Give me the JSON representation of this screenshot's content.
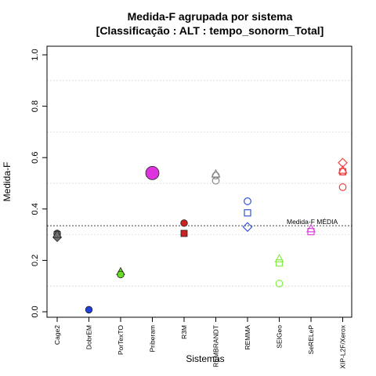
{
  "chart_data": {
    "type": "scatter",
    "title_line1": "Medida-F agrupada por sistema",
    "title_line2": "[Classificação : ALT : tempo_sonorm_Total]",
    "xlabel": "Sistemas",
    "ylabel": "Medida-F",
    "ylim": [
      0,
      1
    ],
    "yticks": [
      "0.0",
      "0.2",
      "0.4",
      "0.6",
      "0.8",
      "1.0"
    ],
    "grid": true,
    "reference_line": {
      "value": 0.335,
      "label": "Medida-F MÉDIA"
    },
    "categories": [
      "Cage2",
      "DobrEM",
      "PorTexTO",
      "Priberam",
      "R3M",
      "REMBRANDT",
      "REMMA",
      "SEIGeo",
      "SeRELeP",
      "XIP-L2F/Xerox"
    ],
    "points": [
      {
        "category": "Cage2",
        "y": 0.305,
        "shape": "circle",
        "color": "#707070",
        "filled": true
      },
      {
        "category": "Cage2",
        "y": 0.3,
        "shape": "square",
        "color": "#707070",
        "filled": true
      },
      {
        "category": "Cage2",
        "y": 0.29,
        "shape": "diamond",
        "color": "#707070",
        "filled": true
      },
      {
        "category": "Cage2",
        "y": 0.3,
        "shape": "triangle",
        "color": "#707070",
        "filled": true
      },
      {
        "category": "DobrEM",
        "y": 0.008,
        "shape": "circle",
        "color": "#1f3fd8",
        "filled": true
      },
      {
        "category": "PorTexTO",
        "y": 0.155,
        "shape": "triangle",
        "color": "#66dd22",
        "filled": true
      },
      {
        "category": "PorTexTO",
        "y": 0.145,
        "shape": "circle",
        "color": "#66dd22",
        "filled": true
      },
      {
        "category": "Priberam",
        "y": 0.54,
        "shape": "circle-large",
        "color": "#dd33dd",
        "filled": true
      },
      {
        "category": "R3M",
        "y": 0.345,
        "shape": "circle",
        "color": "#cc2222",
        "filled": true
      },
      {
        "category": "R3M",
        "y": 0.305,
        "shape": "square",
        "color": "#cc2222",
        "filled": true
      },
      {
        "category": "REMBRANDT",
        "y": 0.535,
        "shape": "triangle",
        "color": "#888888",
        "filled": false
      },
      {
        "category": "REMBRANDT",
        "y": 0.53,
        "shape": "circle",
        "color": "#888888",
        "filled": false
      },
      {
        "category": "REMBRANDT",
        "y": 0.51,
        "shape": "circle",
        "color": "#888888",
        "filled": false
      },
      {
        "category": "REMMA",
        "y": 0.43,
        "shape": "circle",
        "color": "#3355dd",
        "filled": false
      },
      {
        "category": "REMMA",
        "y": 0.385,
        "shape": "square",
        "color": "#3355dd",
        "filled": false
      },
      {
        "category": "REMMA",
        "y": 0.33,
        "shape": "diamond",
        "color": "#3355dd",
        "filled": false
      },
      {
        "category": "SEIGeo",
        "y": 0.205,
        "shape": "triangle",
        "color": "#88ee44",
        "filled": false
      },
      {
        "category": "SEIGeo",
        "y": 0.19,
        "shape": "square",
        "color": "#88ee44",
        "filled": false
      },
      {
        "category": "SEIGeo",
        "y": 0.11,
        "shape": "circle",
        "color": "#88ee44",
        "filled": false
      },
      {
        "category": "SeRELeP",
        "y": 0.322,
        "shape": "triangle",
        "color": "#dd44dd",
        "filled": false
      },
      {
        "category": "SeRELeP",
        "y": 0.312,
        "shape": "square",
        "color": "#dd44dd",
        "filled": false
      },
      {
        "category": "XIP-L2F/Xerox",
        "y": 0.58,
        "shape": "diamond",
        "color": "#ee4444",
        "filled": false
      },
      {
        "category": "XIP-L2F/Xerox",
        "y": 0.55,
        "shape": "triangle",
        "color": "#ee4444",
        "filled": false
      },
      {
        "category": "XIP-L2F/Xerox",
        "y": 0.545,
        "shape": "circle",
        "color": "#ee4444",
        "filled": false
      },
      {
        "category": "XIP-L2F/Xerox",
        "y": 0.545,
        "shape": "square",
        "color": "#ee4444",
        "filled": false
      },
      {
        "category": "XIP-L2F/Xerox",
        "y": 0.485,
        "shape": "circle",
        "color": "#ee4444",
        "filled": false
      }
    ]
  }
}
